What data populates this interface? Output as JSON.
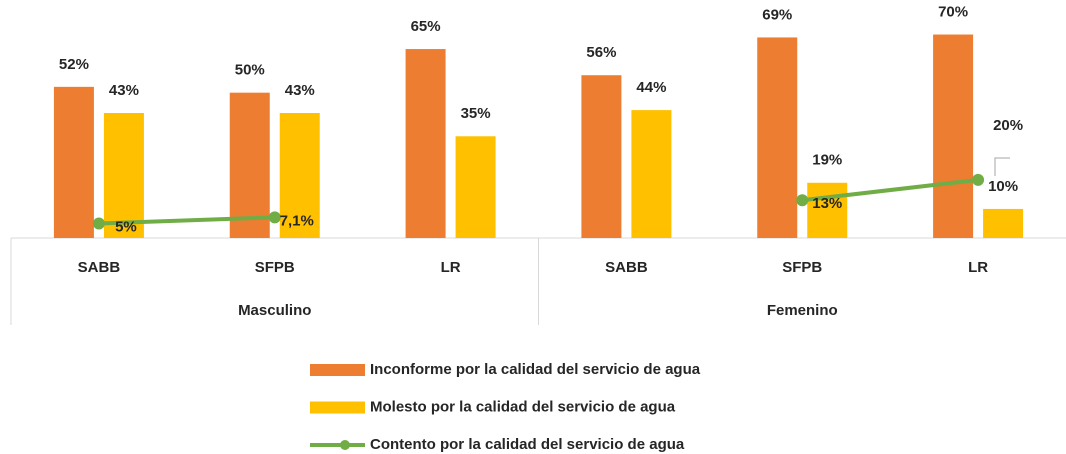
{
  "chart_data": {
    "type": "bar",
    "categories": [
      "SABB",
      "SFPB",
      "LR",
      "SABB",
      "SFPB",
      "LR"
    ],
    "groups": [
      {
        "name": "Masculino",
        "categories": [
          0,
          1,
          2
        ]
      },
      {
        "name": "Femenino",
        "categories": [
          3,
          4,
          5
        ]
      }
    ],
    "ylim": [
      0,
      75
    ],
    "series": [
      {
        "name": "Inconforme por la calidad del servicio de agua",
        "type": "bar",
        "color": "#ED7D31",
        "values": [
          52,
          50,
          65,
          56,
          69,
          70
        ],
        "value_labels": [
          "52%",
          "50%",
          "65%",
          "56%",
          "69%",
          "70%"
        ]
      },
      {
        "name": "Molesto por la calidad del servicio de agua",
        "type": "bar",
        "color": "#FFC000",
        "values": [
          43,
          43,
          35,
          44,
          19,
          10
        ],
        "value_labels": [
          "43%",
          "43%",
          "35%",
          "44%",
          "19%",
          "10%"
        ]
      },
      {
        "name": "Contento por la calidad del servicio de agua",
        "type": "line",
        "color": "#70AD47",
        "values": [
          5,
          7.1,
          null,
          null,
          13,
          20
        ],
        "value_labels": [
          "5%",
          "7,1%",
          null,
          null,
          "13%",
          "20%"
        ]
      }
    ],
    "legend": "bottom"
  }
}
